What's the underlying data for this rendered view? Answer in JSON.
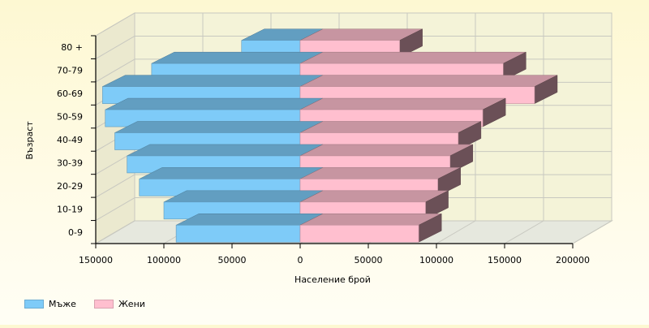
{
  "chart_data": {
    "type": "bar",
    "orientation": "horizontal",
    "style": "3d population pyramid",
    "categories": [
      "0-9",
      "10-19",
      "20-29",
      "30-39",
      "40-49",
      "50-59",
      "60-69",
      "70-79",
      "80 +"
    ],
    "series": [
      {
        "name": "Мъже",
        "color": "#7ecbf8",
        "values": [
          -91000,
          -100000,
          -118000,
          -127000,
          -136000,
          -143000,
          -145000,
          -109000,
          -43000
        ]
      },
      {
        "name": "Жени",
        "color": "#ffbfcf",
        "values": [
          87000,
          92000,
          101000,
          110000,
          116000,
          134000,
          172000,
          149000,
          73000
        ]
      }
    ],
    "xticks": [
      "150000",
      "100000",
      "50000",
      "0",
      "50000",
      "100000",
      "150000",
      "200000"
    ],
    "xlabel": "Население брой",
    "ylabel": "Възраст",
    "xlim": [
      -150000,
      200000
    ],
    "grid": true,
    "legend_position": "bottom-left"
  }
}
